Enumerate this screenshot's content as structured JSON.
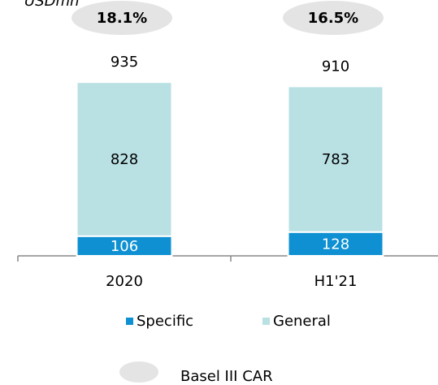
{
  "chart_data": {
    "type": "bar",
    "stacked": true,
    "subtitle": "USDmn",
    "categories": [
      "2020",
      "H1'21"
    ],
    "series": [
      {
        "name": "Specific",
        "color": "#0e90d2",
        "values": [
          106,
          128
        ]
      },
      {
        "name": "General",
        "color": "#b9e0e3",
        "values": [
          828,
          783
        ]
      }
    ],
    "total_labels": [
      935,
      910
    ],
    "car": {
      "name": "Basel III CAR",
      "color": "#e4e4e4",
      "values": [
        18.1,
        16.5
      ],
      "value_labels": [
        "18.1%",
        "16.5%"
      ]
    },
    "ylim": [
      0,
      1000
    ]
  }
}
